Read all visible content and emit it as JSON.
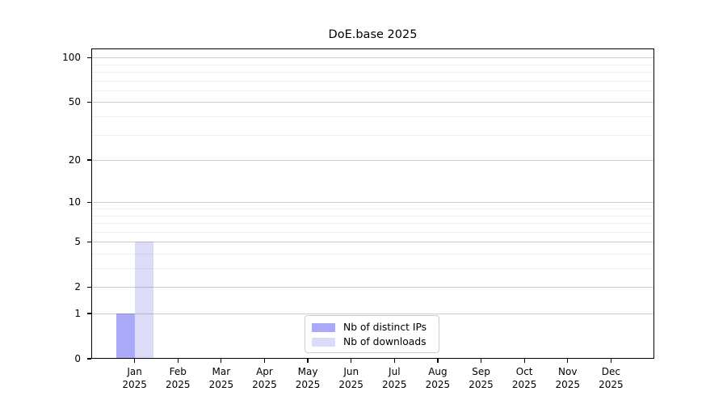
{
  "chart_data": {
    "type": "bar",
    "title": "DoE.base 2025",
    "categories": [
      "Jan 2025",
      "Feb 2025",
      "Mar 2025",
      "Apr 2025",
      "May 2025",
      "Jun 2025",
      "Jul 2025",
      "Aug 2025",
      "Sep 2025",
      "Oct 2025",
      "Nov 2025",
      "Dec 2025"
    ],
    "series": [
      {
        "name": "Nb of distinct IPs",
        "color": "#aaaaf8",
        "values": [
          1,
          0,
          0,
          0,
          0,
          0,
          0,
          0,
          0,
          0,
          0,
          0
        ]
      },
      {
        "name": "Nb of downloads",
        "color": "#dcdcf8",
        "values": [
          5,
          0,
          0,
          0,
          0,
          0,
          0,
          0,
          0,
          0,
          0,
          0
        ]
      }
    ],
    "xlabel": "",
    "ylabel": "",
    "yscale": "log1p",
    "ylim": [
      0,
      115
    ],
    "y_major_ticks": [
      0,
      1,
      2,
      5,
      10,
      20,
      50,
      100
    ],
    "y_minor_gridlines": [
      3,
      4,
      6,
      7,
      8,
      9,
      30,
      40,
      60,
      70,
      80,
      90
    ],
    "grid": "horizontal, drawn over bars",
    "legend_position": "lower center inside plot"
  },
  "colors": {
    "background": "#ffffff",
    "spine": "#000000",
    "major_grid": "#cdcdcd",
    "minor_grid": "#ececec",
    "legend_border": "#cccccc",
    "text": "#000000"
  }
}
